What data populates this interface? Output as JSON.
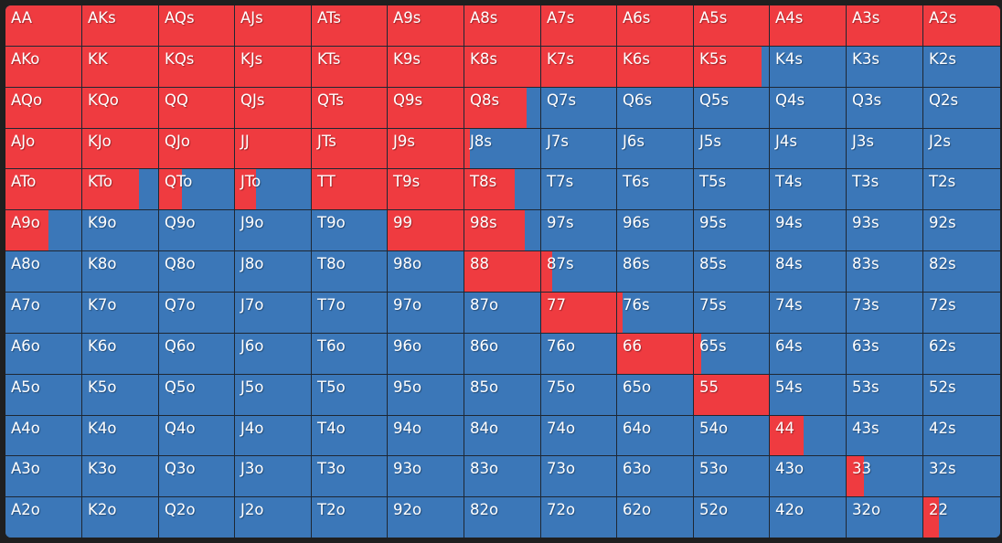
{
  "colors": {
    "raise": "#ef3b40",
    "fold": "#3b77b8"
  },
  "grid": {
    "rows": [
      [
        [
          "AA",
          1
        ],
        [
          "AKs",
          1
        ],
        [
          "AQs",
          1
        ],
        [
          "AJs",
          1
        ],
        [
          "ATs",
          1
        ],
        [
          "A9s",
          1
        ],
        [
          "A8s",
          1
        ],
        [
          "A7s",
          1
        ],
        [
          "A6s",
          1
        ],
        [
          "A5s",
          1
        ],
        [
          "A4s",
          1
        ],
        [
          "A3s",
          1
        ],
        [
          "A2s",
          1
        ]
      ],
      [
        [
          "AKo",
          1
        ],
        [
          "KK",
          1
        ],
        [
          "KQs",
          1
        ],
        [
          "KJs",
          1
        ],
        [
          "KTs",
          1
        ],
        [
          "K9s",
          1
        ],
        [
          "K8s",
          1
        ],
        [
          "K7s",
          1
        ],
        [
          "K6s",
          1
        ],
        [
          "K5s",
          0.9
        ],
        [
          "K4s",
          0
        ],
        [
          "K3s",
          0
        ],
        [
          "K2s",
          0
        ]
      ],
      [
        [
          "AQo",
          1
        ],
        [
          "KQo",
          1
        ],
        [
          "QQ",
          1
        ],
        [
          "QJs",
          1
        ],
        [
          "QTs",
          1
        ],
        [
          "Q9s",
          1
        ],
        [
          "Q8s",
          0.82
        ],
        [
          "Q7s",
          0
        ],
        [
          "Q6s",
          0
        ],
        [
          "Q5s",
          0
        ],
        [
          "Q4s",
          0
        ],
        [
          "Q3s",
          0
        ],
        [
          "Q2s",
          0
        ]
      ],
      [
        [
          "AJo",
          1
        ],
        [
          "KJo",
          1
        ],
        [
          "QJo",
          1
        ],
        [
          "JJ",
          1
        ],
        [
          "JTs",
          1
        ],
        [
          "J9s",
          1
        ],
        [
          "J8s",
          0.07
        ],
        [
          "J7s",
          0
        ],
        [
          "J6s",
          0
        ],
        [
          "J5s",
          0
        ],
        [
          "J4s",
          0
        ],
        [
          "J3s",
          0
        ],
        [
          "J2s",
          0
        ]
      ],
      [
        [
          "ATo",
          1
        ],
        [
          "KTo",
          0.75
        ],
        [
          "QTo",
          0.31
        ],
        [
          "JTo",
          0.28
        ],
        [
          "TT",
          1
        ],
        [
          "T9s",
          1
        ],
        [
          "T8s",
          0.66
        ],
        [
          "T7s",
          0
        ],
        [
          "T6s",
          0
        ],
        [
          "T5s",
          0
        ],
        [
          "T4s",
          0
        ],
        [
          "T3s",
          0
        ],
        [
          "T2s",
          0
        ]
      ],
      [
        [
          "A9o",
          0.57
        ],
        [
          "K9o",
          0
        ],
        [
          "Q9o",
          0
        ],
        [
          "J9o",
          0
        ],
        [
          "T9o",
          0
        ],
        [
          "99",
          1
        ],
        [
          "98s",
          0.8
        ],
        [
          "97s",
          0
        ],
        [
          "96s",
          0
        ],
        [
          "95s",
          0
        ],
        [
          "94s",
          0
        ],
        [
          "93s",
          0
        ],
        [
          "92s",
          0
        ]
      ],
      [
        [
          "A8o",
          0
        ],
        [
          "K8o",
          0
        ],
        [
          "Q8o",
          0
        ],
        [
          "J8o",
          0
        ],
        [
          "T8o",
          0
        ],
        [
          "98o",
          0
        ],
        [
          "88",
          1
        ],
        [
          "87s",
          0.15
        ],
        [
          "86s",
          0
        ],
        [
          "85s",
          0
        ],
        [
          "84s",
          0
        ],
        [
          "83s",
          0
        ],
        [
          "82s",
          0
        ]
      ],
      [
        [
          "A7o",
          0
        ],
        [
          "K7o",
          0
        ],
        [
          "Q7o",
          0
        ],
        [
          "J7o",
          0
        ],
        [
          "T7o",
          0
        ],
        [
          "97o",
          0
        ],
        [
          "87o",
          0
        ],
        [
          "77",
          1
        ],
        [
          "76s",
          0.07
        ],
        [
          "75s",
          0
        ],
        [
          "74s",
          0
        ],
        [
          "73s",
          0
        ],
        [
          "72s",
          0
        ]
      ],
      [
        [
          "A6o",
          0
        ],
        [
          "K6o",
          0
        ],
        [
          "Q6o",
          0
        ],
        [
          "J6o",
          0
        ],
        [
          "T6o",
          0
        ],
        [
          "96o",
          0
        ],
        [
          "86o",
          0
        ],
        [
          "76o",
          0
        ],
        [
          "66",
          1
        ],
        [
          "65s",
          0.1
        ],
        [
          "64s",
          0
        ],
        [
          "63s",
          0
        ],
        [
          "62s",
          0
        ]
      ],
      [
        [
          "A5o",
          0
        ],
        [
          "K5o",
          0
        ],
        [
          "Q5o",
          0
        ],
        [
          "J5o",
          0
        ],
        [
          "T5o",
          0
        ],
        [
          "95o",
          0
        ],
        [
          "85o",
          0
        ],
        [
          "75o",
          0
        ],
        [
          "65o",
          0
        ],
        [
          "55",
          1
        ],
        [
          "54s",
          0
        ],
        [
          "53s",
          0
        ],
        [
          "52s",
          0
        ]
      ],
      [
        [
          "A4o",
          0
        ],
        [
          "K4o",
          0
        ],
        [
          "Q4o",
          0
        ],
        [
          "J4o",
          0
        ],
        [
          "T4o",
          0
        ],
        [
          "94o",
          0
        ],
        [
          "84o",
          0
        ],
        [
          "74o",
          0
        ],
        [
          "64o",
          0
        ],
        [
          "54o",
          0
        ],
        [
          "44",
          0.44
        ],
        [
          "43s",
          0
        ],
        [
          "42s",
          0
        ]
      ],
      [
        [
          "A3o",
          0
        ],
        [
          "K3o",
          0
        ],
        [
          "Q3o",
          0
        ],
        [
          "J3o",
          0
        ],
        [
          "T3o",
          0
        ],
        [
          "93o",
          0
        ],
        [
          "83o",
          0
        ],
        [
          "73o",
          0
        ],
        [
          "63o",
          0
        ],
        [
          "53o",
          0
        ],
        [
          "43o",
          0
        ],
        [
          "33",
          0.23
        ],
        [
          "32s",
          0
        ]
      ],
      [
        [
          "A2o",
          0
        ],
        [
          "K2o",
          0
        ],
        [
          "Q2o",
          0
        ],
        [
          "J2o",
          0
        ],
        [
          "T2o",
          0
        ],
        [
          "92o",
          0
        ],
        [
          "82o",
          0
        ],
        [
          "72o",
          0
        ],
        [
          "62o",
          0
        ],
        [
          "52o",
          0
        ],
        [
          "42o",
          0
        ],
        [
          "32o",
          0
        ],
        [
          "22",
          0.2
        ]
      ]
    ]
  }
}
